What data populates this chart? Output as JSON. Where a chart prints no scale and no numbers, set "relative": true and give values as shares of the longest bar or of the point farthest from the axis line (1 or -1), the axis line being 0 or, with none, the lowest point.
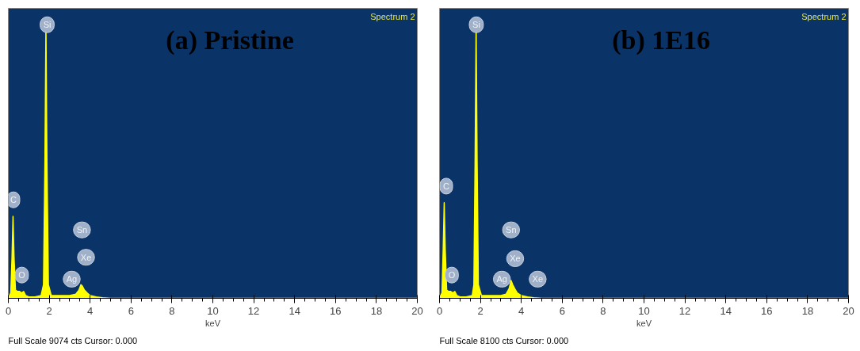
{
  "chart_data": [
    {
      "type": "area",
      "title": "(a)  Pristine",
      "xlabel": "keV",
      "relative": true,
      "grid": false,
      "annotations": [
        "Spectrum 2",
        "Full Scale 9074 cts Cursor: 0.000",
        {
          "text": "Si",
          "x": 1.9,
          "y": 1.0
        },
        {
          "text": "C",
          "x": 0.25,
          "y": 0.36
        },
        {
          "text": "O",
          "x": 0.66,
          "y": 0.085
        },
        {
          "text": "Ag",
          "x": 3.1,
          "y": 0.07
        },
        {
          "text": "Sn",
          "x": 3.6,
          "y": 0.25
        },
        {
          "text": "Xe",
          "x": 3.8,
          "y": 0.15
        }
      ],
      "xlim": [
        0,
        20
      ],
      "xticks": [
        0,
        2,
        4,
        6,
        8,
        10,
        12,
        14,
        16,
        18,
        20
      ],
      "series": [
        {
          "color": "#ffff00",
          "x": [
            0,
            0.12,
            0.18,
            0.23,
            0.28,
            0.35,
            0.45,
            0.55,
            0.65,
            0.75,
            0.85,
            1.0,
            1.3,
            1.6,
            1.72,
            1.79,
            1.84,
            1.89,
            1.96,
            2.1,
            2.5,
            3.0,
            3.3,
            3.45,
            3.55,
            3.62,
            3.72,
            3.85,
            4.0,
            4.3,
            4.6,
            5.0,
            20
          ],
          "values": [
            0,
            0.02,
            0.15,
            0.3,
            0.15,
            0.03,
            0.025,
            0.025,
            0.02,
            0.025,
            0.01,
            0.005,
            0.005,
            0.01,
            0.05,
            0.5,
            1,
            0.5,
            0.05,
            0.01,
            0.01,
            0.01,
            0.015,
            0.03,
            0.05,
            0.045,
            0.03,
            0.02,
            0.01,
            0.005,
            0.002,
            0,
            0
          ]
        }
      ]
    },
    {
      "type": "area",
      "title": "(b)  1E16",
      "xlabel": "keV",
      "relative": true,
      "grid": false,
      "annotations": [
        "Spectrum 2",
        "Full Scale 8100 cts Cursor: 0.000",
        {
          "text": "Si",
          "x": 1.8,
          "y": 1.0
        },
        {
          "text": "C",
          "x": 0.33,
          "y": 0.41
        },
        {
          "text": "O",
          "x": 0.6,
          "y": 0.085
        },
        {
          "text": "Ag",
          "x": 3.05,
          "y": 0.07
        },
        {
          "text": "Sn",
          "x": 3.5,
          "y": 0.25
        },
        {
          "text": "Xe",
          "x": 3.7,
          "y": 0.145
        },
        {
          "text": "Xe",
          "x": 4.8,
          "y": 0.07
        }
      ],
      "xlim": [
        0,
        20
      ],
      "xticks": [
        0,
        2,
        4,
        6,
        8,
        10,
        12,
        14,
        16,
        18,
        20
      ],
      "series": [
        {
          "color": "#ffff00",
          "x": [
            0,
            0.12,
            0.18,
            0.23,
            0.28,
            0.35,
            0.45,
            0.55,
            0.65,
            0.75,
            0.85,
            1.0,
            1.3,
            1.6,
            1.68,
            1.74,
            1.79,
            1.84,
            1.9,
            2.05,
            2.5,
            3.0,
            3.25,
            3.4,
            3.5,
            3.58,
            3.68,
            3.8,
            4.0,
            4.3,
            4.6,
            5.0,
            20
          ],
          "values": [
            0,
            0.02,
            0.18,
            0.35,
            0.18,
            0.03,
            0.025,
            0.025,
            0.02,
            0.025,
            0.01,
            0.005,
            0.005,
            0.01,
            0.05,
            0.5,
            1,
            0.5,
            0.05,
            0.01,
            0.01,
            0.01,
            0.015,
            0.035,
            0.065,
            0.05,
            0.035,
            0.02,
            0.01,
            0.005,
            0.002,
            0,
            0
          ]
        }
      ]
    }
  ]
}
